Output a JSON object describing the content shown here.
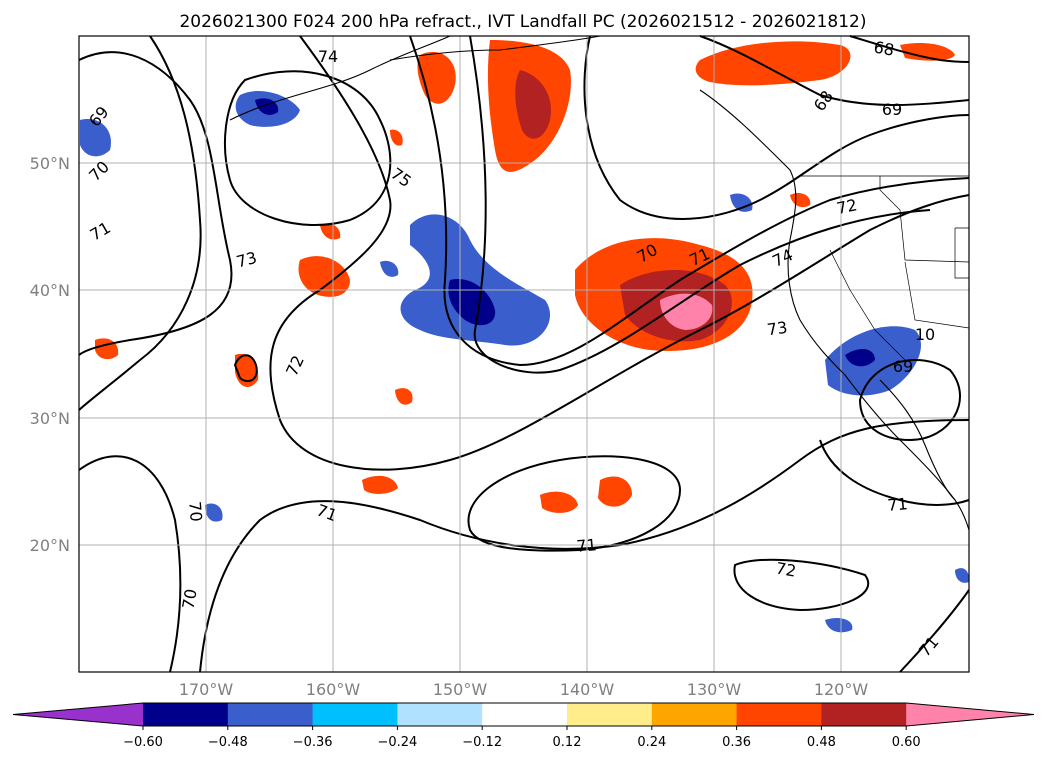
{
  "title": "2026021300 F024 200 hPa refract., IVT Landfall PC (2026021512 - 2026021812)",
  "lat_labels": [
    "50°N",
    "40°N",
    "30°N",
    "20°N"
  ],
  "lon_labels": [
    "170°W",
    "160°W",
    "150°W",
    "140°W",
    "130°W",
    "120°W"
  ],
  "colorbar": {
    "ticks": [
      "−0.60",
      "−0.48",
      "−0.36",
      "−0.24",
      "−0.12",
      "0.12",
      "0.24",
      "0.36",
      "0.48",
      "0.60"
    ],
    "colors": [
      "#9932cc",
      "#00008b",
      "#3a5fcd",
      "#00bfff",
      "#b0e2ff",
      "#ffffff",
      "#ffec8b",
      "#ffa500",
      "#ff4500",
      "#b22222",
      "#ff82ab"
    ]
  },
  "contour_labels": [
    "74",
    "75",
    "69",
    "70",
    "71",
    "73",
    "72",
    "70",
    "71",
    "70",
    "68",
    "68",
    "69",
    "72",
    "74",
    "70",
    "71",
    "73",
    "10",
    "69",
    "71",
    "71",
    "72",
    "71"
  ]
}
